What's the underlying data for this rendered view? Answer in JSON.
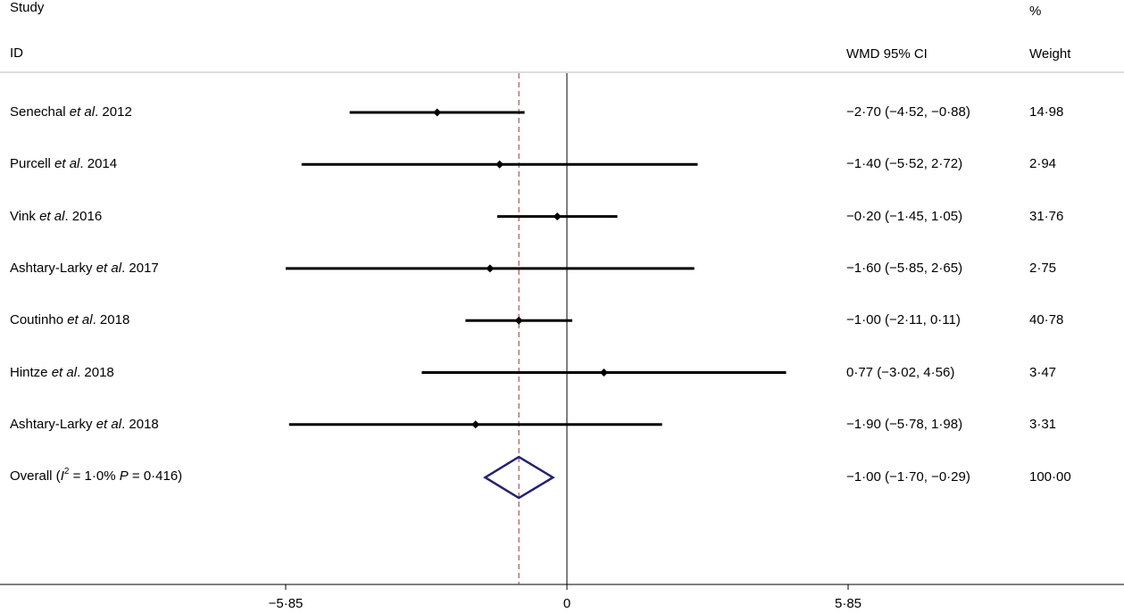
{
  "headers": {
    "study": "Study",
    "id": "ID",
    "wmd": "WMD  95% CI",
    "pct": "%",
    "weight": "Weight"
  },
  "chart_data": {
    "type": "forest",
    "x_ticks": [
      {
        "value": -5.85,
        "label": "−5·85"
      },
      {
        "value": 0,
        "label": "0"
      },
      {
        "value": 5.85,
        "label": "5·85"
      }
    ],
    "xlim": [
      -11.7,
      11.7
    ],
    "null_line": 0,
    "overall_line": -1.0,
    "studies": [
      {
        "name": "Senechal",
        "etal": "et al",
        "year": ". 2012",
        "est": -2.7,
        "lo": -4.52,
        "hi": -0.88,
        "ci_text": "−2·70 (−4·52, −0·88)",
        "weight": "14·98"
      },
      {
        "name": "Purcell",
        "etal": "et al",
        "year": ". 2014",
        "est": -1.4,
        "lo": -5.52,
        "hi": 2.72,
        "ci_text": "−1·40 (−5·52, 2·72)",
        "weight": "2·94"
      },
      {
        "name": "Vink",
        "etal": "et al",
        "year": ". 2016",
        "est": -0.2,
        "lo": -1.45,
        "hi": 1.05,
        "ci_text": "−0·20 (−1·45, 1·05)",
        "weight": "31·76"
      },
      {
        "name": "Ashtary-Larky",
        "etal": "et al",
        "year": ". 2017",
        "est": -1.6,
        "lo": -5.85,
        "hi": 2.65,
        "ci_text": "−1·60 (−5·85, 2·65)",
        "weight": "2·75"
      },
      {
        "name": "Coutinho",
        "etal": "et al",
        "year": ". 2018",
        "est": -1.0,
        "lo": -2.11,
        "hi": 0.11,
        "ci_text": "−1·00 (−2·11, 0·11)",
        "weight": "40·78"
      },
      {
        "name": "Hintze",
        "etal": "et al",
        "year": ". 2018",
        "est": 0.77,
        "lo": -3.02,
        "hi": 4.56,
        "ci_text": "0·77 (−3·02, 4·56)",
        "weight": "3·47"
      },
      {
        "name": "Ashtary-Larky",
        "etal": "et al",
        "year": ". 2018",
        "est": -1.9,
        "lo": -5.78,
        "hi": 1.98,
        "ci_text": "−1·90 (−5·78, 1·98)",
        "weight": "3·31"
      }
    ],
    "overall": {
      "prefix": "Overall (",
      "i_letter": "I",
      "sup": "2",
      "middle": " = 1·0% ",
      "p_letter": "P",
      "suffix": " = 0·416)",
      "est": -1.0,
      "lo": -1.7,
      "hi": -0.29,
      "ci_text": "−1·00 (−1·70, −0·29)",
      "weight": "100·00"
    },
    "colors": {
      "ci": "#000000",
      "diamond": "#232370",
      "overall_line": "#9b2c3b",
      "axis": "#000000"
    }
  }
}
